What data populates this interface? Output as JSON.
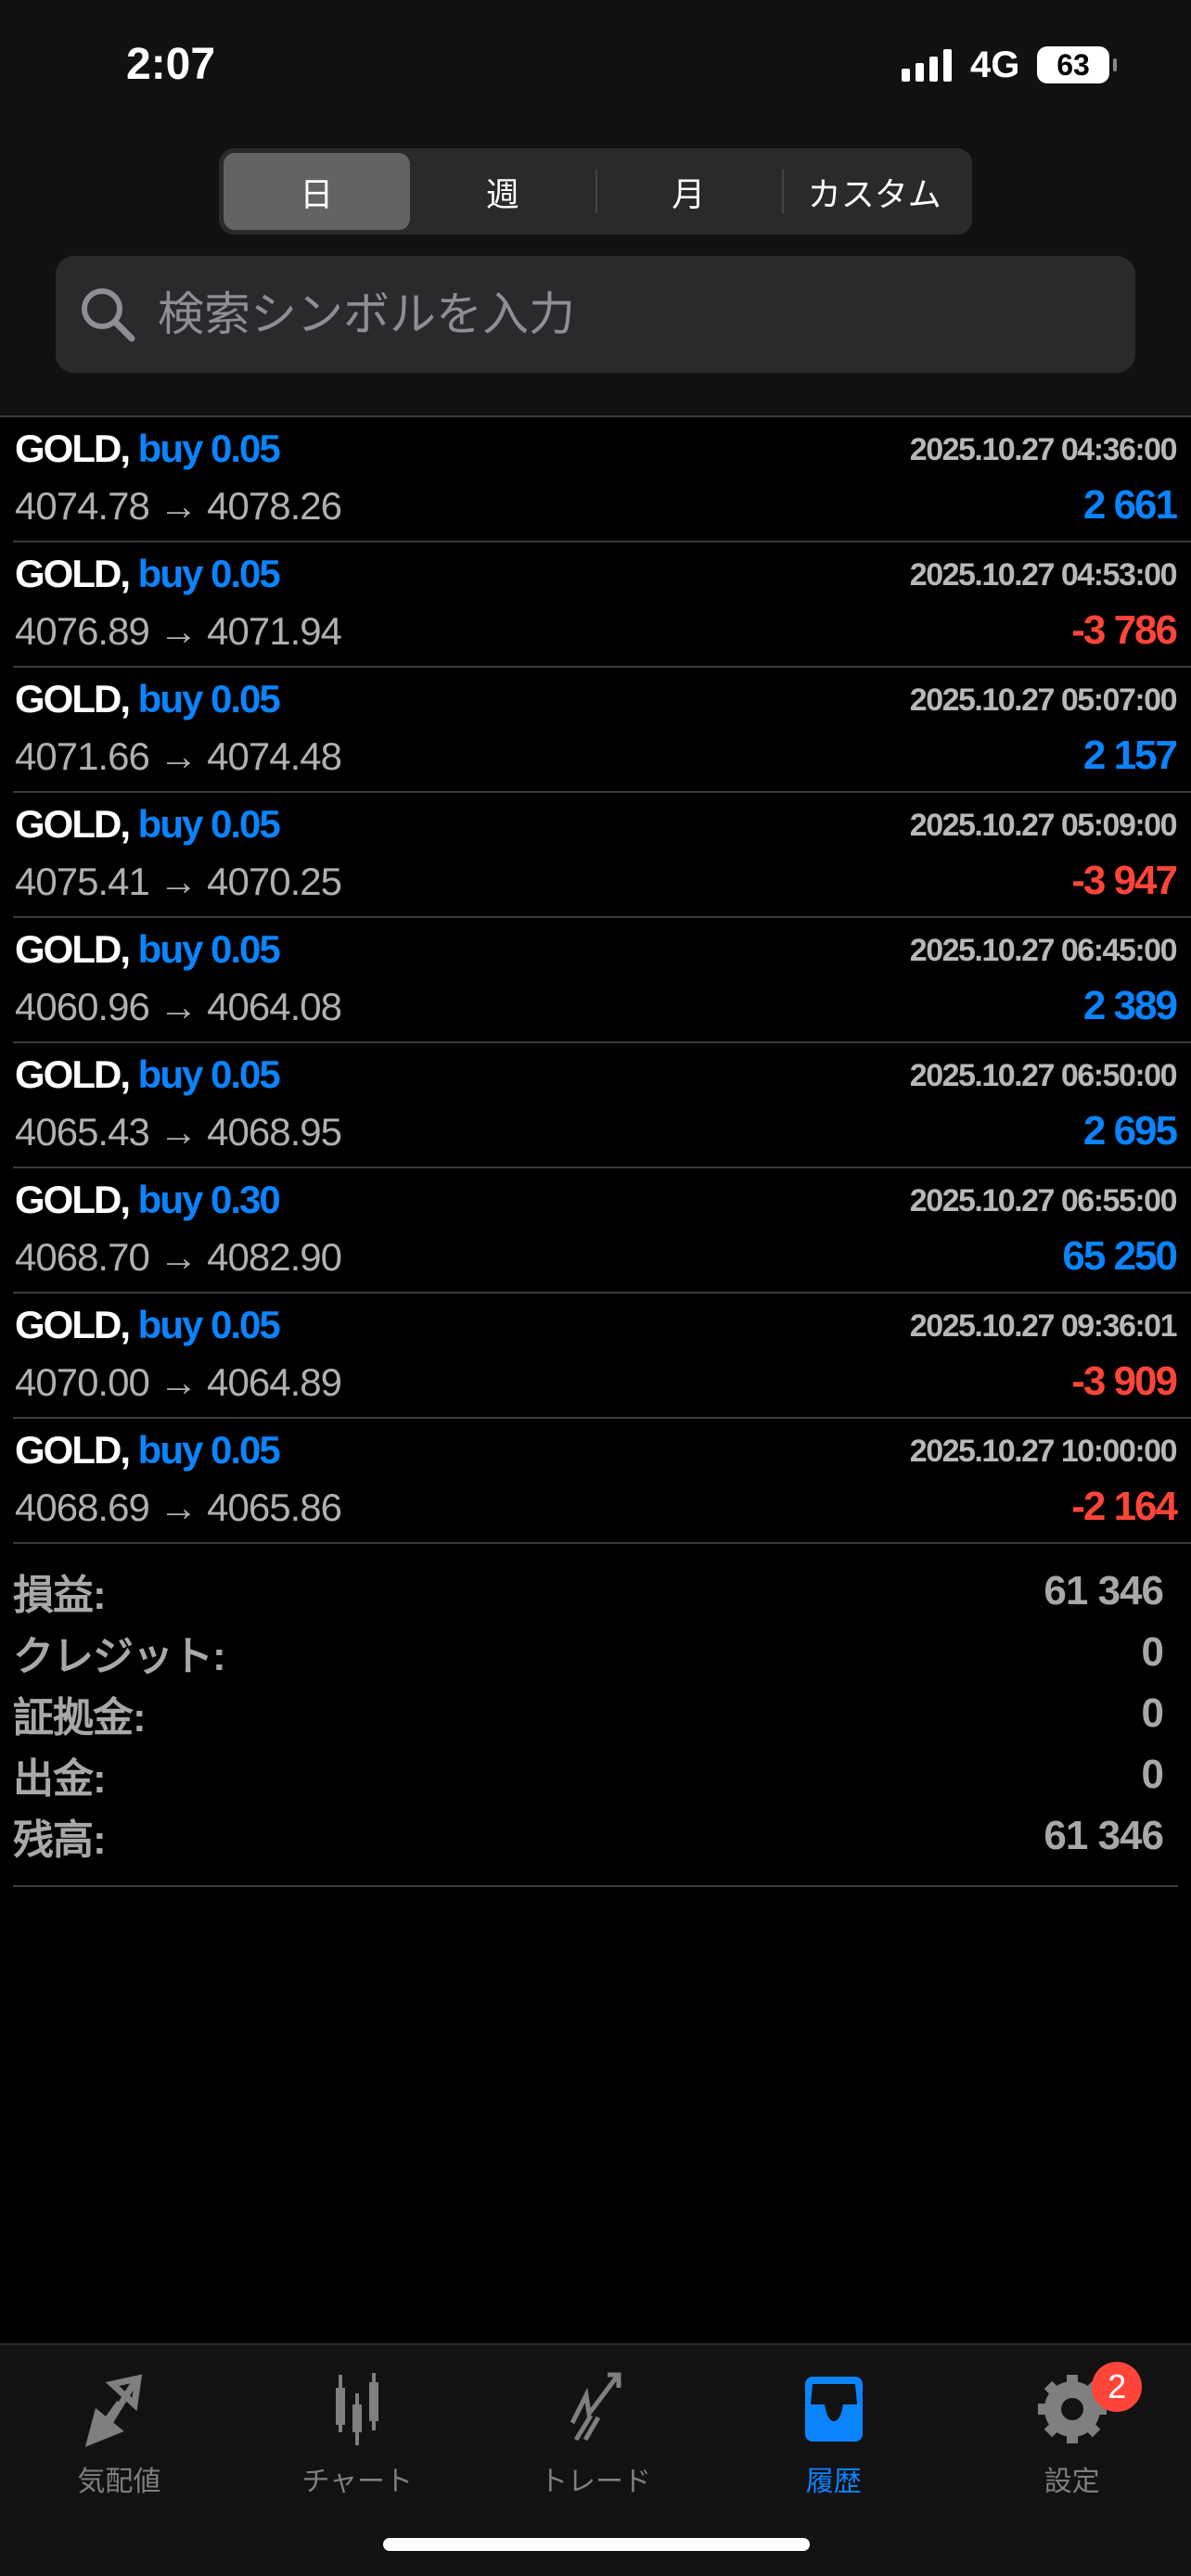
{
  "status": {
    "time": "2:07",
    "network": "4G",
    "battery": "63"
  },
  "segments": [
    {
      "label": "日",
      "active": true
    },
    {
      "label": "週"
    },
    {
      "label": "月"
    },
    {
      "label": "カスタム"
    }
  ],
  "search": {
    "placeholder": "検索シンボルを入力",
    "value": ""
  },
  "trades": [
    {
      "symbol": "GOLD,",
      "side": "buy 0.05",
      "time": "2025.10.27 04:36:00",
      "prices": "4074.78 → 4078.26",
      "profit": "2 661",
      "positive": true
    },
    {
      "symbol": "GOLD,",
      "side": "buy 0.05",
      "time": "2025.10.27 04:53:00",
      "prices": "4076.89 → 4071.94",
      "profit": "-3 786",
      "positive": false
    },
    {
      "symbol": "GOLD,",
      "side": "buy 0.05",
      "time": "2025.10.27 05:07:00",
      "prices": "4071.66 → 4074.48",
      "profit": "2 157",
      "positive": true
    },
    {
      "symbol": "GOLD,",
      "side": "buy 0.05",
      "time": "2025.10.27 05:09:00",
      "prices": "4075.41 → 4070.25",
      "profit": "-3 947",
      "positive": false
    },
    {
      "symbol": "GOLD,",
      "side": "buy 0.05",
      "time": "2025.10.27 06:45:00",
      "prices": "4060.96 → 4064.08",
      "profit": "2 389",
      "positive": true
    },
    {
      "symbol": "GOLD,",
      "side": "buy 0.05",
      "time": "2025.10.27 06:50:00",
      "prices": "4065.43 → 4068.95",
      "profit": "2 695",
      "positive": true
    },
    {
      "symbol": "GOLD,",
      "side": "buy 0.30",
      "time": "2025.10.27 06:55:00",
      "prices": "4068.70 → 4082.90",
      "profit": "65 250",
      "positive": true
    },
    {
      "symbol": "GOLD,",
      "side": "buy 0.05",
      "time": "2025.10.27 09:36:01",
      "prices": "4070.00 → 4064.89",
      "profit": "-3 909",
      "positive": false
    },
    {
      "symbol": "GOLD,",
      "side": "buy 0.05",
      "time": "2025.10.27 10:00:00",
      "prices": "4068.69 → 4065.86",
      "profit": "-2 164",
      "positive": false
    }
  ],
  "summary": [
    {
      "label": "損益:",
      "value": "61 346"
    },
    {
      "label": "クレジット:",
      "value": "0"
    },
    {
      "label": "証拠金:",
      "value": "0"
    },
    {
      "label": "出金:",
      "value": "0"
    },
    {
      "label": "残高:",
      "value": "61 346"
    }
  ],
  "tabs": [
    {
      "label": "気配値",
      "icon": "quotes-arrows-icon"
    },
    {
      "label": "チャート",
      "icon": "candlestick-icon"
    },
    {
      "label": "トレード",
      "icon": "trade-chart-icon"
    },
    {
      "label": "履歴",
      "icon": "history-inbox-icon",
      "active": true
    },
    {
      "label": "設定",
      "icon": "gear-icon",
      "badge": "2"
    }
  ],
  "colors": {
    "positive": "#0a84ff",
    "negative": "#ff453a",
    "active_tab": "#0a84ff"
  }
}
